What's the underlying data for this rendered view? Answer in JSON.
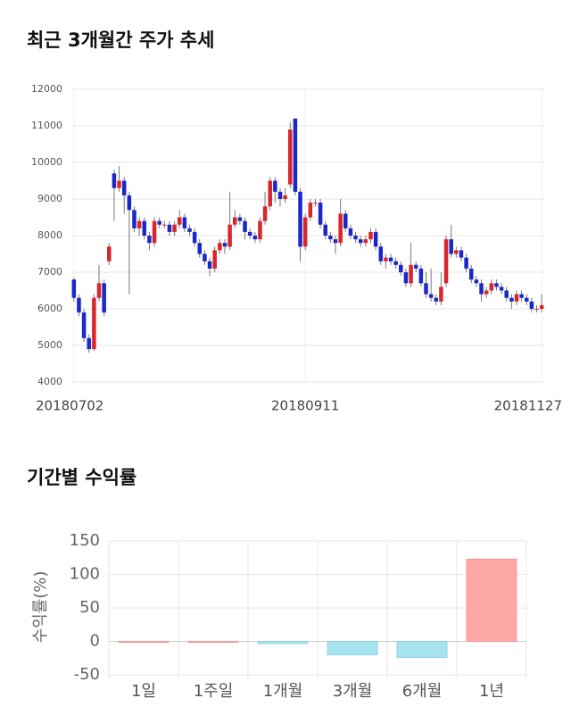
{
  "chart_data": [
    {
      "type": "candlestick",
      "title": "최근 3개월간 주가 추세",
      "categories": [
        "20180702",
        null,
        null,
        null,
        null,
        null,
        null,
        null,
        null,
        null,
        null,
        null,
        null,
        null,
        null,
        null,
        null,
        null,
        null,
        null,
        null,
        null,
        null,
        null,
        null,
        null,
        null,
        null,
        null,
        null,
        null,
        null,
        null,
        null,
        null,
        null,
        null,
        null,
        null,
        null,
        null,
        null,
        null,
        null,
        null,
        null,
        "20180911",
        null,
        null,
        null,
        null,
        null,
        null,
        null,
        null,
        null,
        null,
        null,
        null,
        null,
        null,
        null,
        null,
        null,
        null,
        null,
        null,
        null,
        null,
        null,
        null,
        null,
        null,
        null,
        null,
        null,
        null,
        null,
        null,
        null,
        null,
        null,
        null,
        null,
        null,
        null,
        null,
        null,
        null,
        null,
        null,
        null,
        null,
        "20181127"
      ],
      "open": [
        6800,
        6300,
        5900,
        5200,
        4900,
        6300,
        6700,
        7300,
        9700,
        9300,
        9500,
        9100,
        8700,
        8200,
        8400,
        8000,
        7800,
        8400,
        8300,
        8300,
        8100,
        8300,
        8500,
        8200,
        8100,
        7800,
        7500,
        7300,
        7100,
        7600,
        7800,
        7700,
        8300,
        8500,
        8400,
        8100,
        8000,
        7900,
        8400,
        8800,
        9500,
        9200,
        9000,
        9400,
        11200,
        9200,
        7700,
        8500,
        8900,
        8900,
        8300,
        8000,
        7900,
        7800,
        8600,
        8200,
        8000,
        7900,
        7800,
        7900,
        8100,
        7700,
        7300,
        7400,
        7300,
        7200,
        7000,
        6700,
        7200,
        7100,
        6700,
        6400,
        6300,
        6200,
        6700,
        7900,
        7500,
        7600,
        7400,
        7100,
        6800,
        6700,
        6400,
        6500,
        6700,
        6600,
        6500,
        6300,
        6200,
        6400,
        6300,
        6200,
        6000,
        6000
      ],
      "high": [
        6850,
        6400,
        6000,
        5300,
        6400,
        7200,
        6800,
        7800,
        9800,
        9900,
        9600,
        9200,
        8800,
        8500,
        8500,
        8100,
        8500,
        8500,
        8400,
        8400,
        8400,
        8700,
        8600,
        8300,
        8200,
        7900,
        7600,
        7400,
        7700,
        7900,
        7900,
        9200,
        8700,
        8600,
        8500,
        8200,
        8100,
        8500,
        9200,
        9600,
        9600,
        9300,
        9300,
        11100,
        11200,
        9300,
        8600,
        9000,
        9000,
        9000,
        8400,
        8100,
        8000,
        9000,
        8700,
        8300,
        8100,
        8000,
        8000,
        8200,
        8200,
        7800,
        7500,
        7500,
        7400,
        7300,
        7100,
        7800,
        7300,
        7200,
        7000,
        7100,
        6400,
        7000,
        8000,
        8300,
        7700,
        7700,
        7500,
        7200,
        6900,
        6800,
        6600,
        6800,
        6800,
        6700,
        6600,
        6400,
        6500,
        6500,
        6400,
        6300,
        6100,
        6400
      ],
      "low": [
        6200,
        5800,
        5100,
        4800,
        4850,
        6200,
        5800,
        7200,
        8400,
        9200,
        8600,
        6400,
        8100,
        8000,
        7900,
        7600,
        7700,
        8200,
        8200,
        8000,
        8000,
        8200,
        8100,
        8000,
        7700,
        7400,
        7200,
        6900,
        7000,
        7500,
        7500,
        7600,
        8200,
        8300,
        7900,
        7900,
        7800,
        7800,
        8300,
        8700,
        8900,
        8800,
        8900,
        9300,
        9100,
        7300,
        7600,
        8400,
        8800,
        8200,
        7900,
        7800,
        7500,
        7700,
        8100,
        7900,
        7800,
        7700,
        7700,
        7800,
        7600,
        7200,
        7100,
        7200,
        7100,
        6900,
        6600,
        6600,
        7000,
        6600,
        6300,
        6200,
        6100,
        6100,
        6600,
        7400,
        7400,
        7300,
        7000,
        6700,
        6600,
        6200,
        6300,
        6400,
        6500,
        6400,
        6200,
        6000,
        6100,
        6200,
        6100,
        5900,
        5900,
        5900
      ],
      "close": [
        6300,
        5900,
        5200,
        4900,
        6300,
        6700,
        5900,
        7700,
        9300,
        9500,
        9100,
        8700,
        8200,
        8400,
        8000,
        7800,
        8400,
        8300,
        8300,
        8100,
        8300,
        8500,
        8200,
        8100,
        7800,
        7500,
        7300,
        7100,
        7600,
        7800,
        7700,
        8300,
        8500,
        8400,
        8100,
        8000,
        7900,
        8400,
        8800,
        9500,
        9200,
        9000,
        9100,
        10900,
        9200,
        7700,
        8500,
        8900,
        8900,
        8300,
        8000,
        7900,
        7800,
        8600,
        8200,
        8000,
        7900,
        7800,
        7900,
        8100,
        7700,
        7300,
        7400,
        7300,
        7200,
        7000,
        6700,
        7200,
        7100,
        6700,
        6400,
        6300,
        6200,
        6600,
        7900,
        7500,
        7600,
        7400,
        7100,
        6800,
        6700,
        6400,
        6500,
        6700,
        6600,
        6500,
        6300,
        6200,
        6400,
        6300,
        6200,
        6000,
        6000,
        6100
      ],
      "up_color": "#d9262b",
      "down_color": "#1b27c9",
      "ylim": [
        4000,
        12000
      ],
      "yticks": [
        4000,
        5000,
        6000,
        7000,
        8000,
        9000,
        10000,
        11000,
        12000
      ],
      "grid": true
    },
    {
      "type": "bar",
      "title": "기간별 수익률",
      "y_label": "수익률(%)",
      "categories": [
        "1일",
        "1주일",
        "1개월",
        "3개월",
        "6개월",
        "1년"
      ],
      "values": [
        0,
        0,
        -3,
        -20,
        -24,
        123
      ],
      "positive_color": "#ffa8a8",
      "negative_color": "#a8e4f0",
      "ylim": [
        -55,
        150
      ],
      "yticks": [
        -50,
        0,
        50,
        100,
        150
      ],
      "grid": true
    }
  ]
}
